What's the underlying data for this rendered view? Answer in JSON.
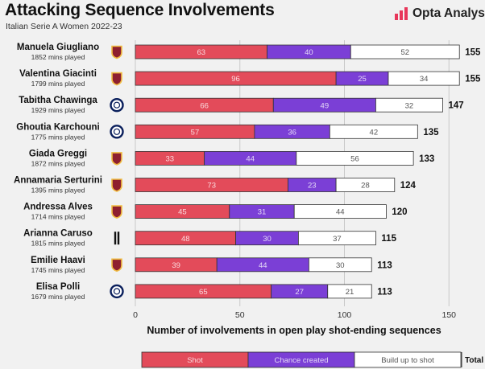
{
  "header": {
    "title": "Attacking Sequence Involvements",
    "subtitle": "Italian Serie A Women 2022-23",
    "brand": "Opta Analyst"
  },
  "colors": {
    "shot": "#e34b5a",
    "chance": "#7b3fd6",
    "build": "#ffffff",
    "brand_accent": "#e8365a",
    "background": "#f1f1f1"
  },
  "chart_data": {
    "type": "bar",
    "orientation": "horizontal",
    "stacked": true,
    "categories": [
      "Manuela Giugliano",
      "Valentina Giacinti",
      "Tabitha Chawinga",
      "Ghoutia Karchouni",
      "Giada Greggi",
      "Annamaria Serturini",
      "Andressa Alves",
      "Arianna Caruso",
      "Emilie Haavi",
      "Elisa Polli"
    ],
    "minutes": [
      "1852 mins played",
      "1799 mins played",
      "1929 mins played",
      "1775 mins played",
      "1872 mins played",
      "1395 mins played",
      "1714 mins played",
      "1815 mins played",
      "1745 mins played",
      "1679 mins played"
    ],
    "clubs": [
      "roma-crest-icon",
      "roma-crest-icon",
      "inter-crest-icon",
      "inter-crest-icon",
      "roma-crest-icon",
      "roma-crest-icon",
      "roma-crest-icon",
      "juventus-crest-icon",
      "roma-crest-icon",
      "inter-crest-icon"
    ],
    "series": [
      {
        "name": "Shot",
        "values": [
          63,
          96,
          66,
          57,
          33,
          73,
          45,
          48,
          39,
          65
        ]
      },
      {
        "name": "Chance created",
        "values": [
          40,
          25,
          49,
          36,
          44,
          23,
          31,
          30,
          44,
          27
        ]
      },
      {
        "name": "Build up to shot",
        "values": [
          52,
          34,
          32,
          42,
          56,
          28,
          44,
          37,
          30,
          21
        ]
      }
    ],
    "totals": [
      155,
      155,
      147,
      135,
      133,
      124,
      120,
      115,
      113,
      113
    ],
    "xlabel": "Number of involvements in open play shot-ending sequences",
    "xticks": [
      0,
      50,
      100,
      150
    ],
    "xlim": [
      0,
      155
    ],
    "grid": true,
    "legend": {
      "position": "bottom",
      "total_label": "Total"
    }
  }
}
